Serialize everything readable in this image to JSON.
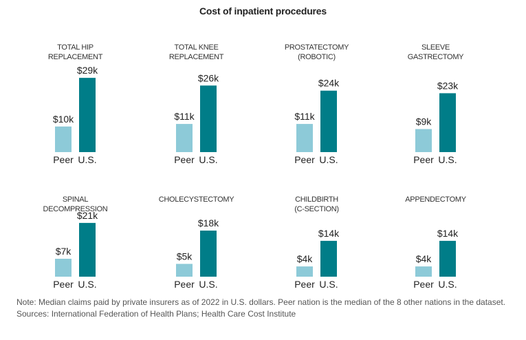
{
  "chart_data": {
    "type": "bar",
    "title": "Cost of inpatient procedures",
    "xlabel": "",
    "ylabel": "",
    "unit": "thousand U.S. dollars",
    "categories": [
      "Peer",
      "U.S."
    ],
    "colors": {
      "Peer": "#8dcad8",
      "U.S.": "#007d88"
    },
    "grid": false,
    "legend": "none",
    "panels": [
      {
        "title_lines": [
          "TOTAL HIP",
          "REPLACEMENT"
        ],
        "values": [
          10,
          29
        ],
        "labels": [
          "$10k",
          "$29k"
        ]
      },
      {
        "title_lines": [
          "TOTAL KNEE",
          "REPLACEMENT"
        ],
        "values": [
          11,
          26
        ],
        "labels": [
          "$11k",
          "$26k"
        ]
      },
      {
        "title_lines": [
          "PROSTATECTOMY",
          "(ROBOTIC)"
        ],
        "values": [
          11,
          24
        ],
        "labels": [
          "$11k",
          "$24k"
        ]
      },
      {
        "title_lines": [
          "SLEEVE",
          "GASTRECTOMY"
        ],
        "values": [
          9,
          23
        ],
        "labels": [
          "$9k",
          "$23k"
        ]
      },
      {
        "title_lines": [
          "SPINAL",
          "DECOMPRESSION"
        ],
        "values": [
          7,
          21
        ],
        "labels": [
          "$7k",
          "$21k"
        ]
      },
      {
        "title_lines": [
          "CHOLECYSTECTOMY"
        ],
        "values": [
          5,
          18
        ],
        "labels": [
          "$5k",
          "$18k"
        ]
      },
      {
        "title_lines": [
          "CHILDBIRTH",
          "(C-SECTION)"
        ],
        "values": [
          4,
          14
        ],
        "labels": [
          "$4k",
          "$14k"
        ]
      },
      {
        "title_lines": [
          "APPENDECTOMY"
        ],
        "values": [
          4,
          14
        ],
        "labels": [
          "$4k",
          "$14k"
        ]
      }
    ]
  },
  "footer": {
    "note": "Note: Median claims paid by private insurers as of 2022 in U.S. dollars. Peer nation is the median of the 8 other nations in the dataset.",
    "sources": "Sources: International Federation of Health Plans; Health Care Cost Institute"
  }
}
